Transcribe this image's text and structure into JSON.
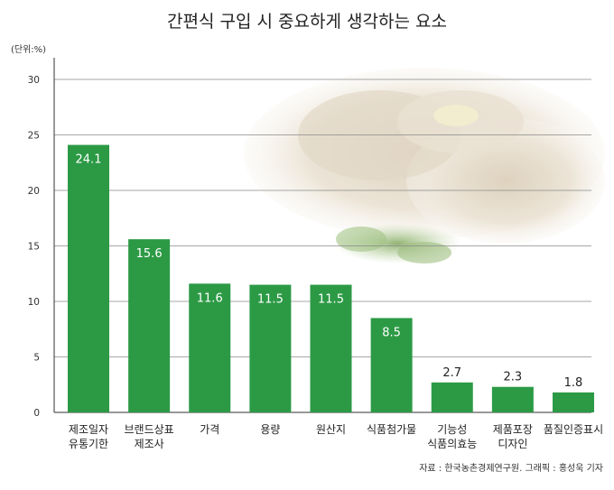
{
  "chart_data": {
    "type": "bar",
    "title": "간편식 구입 시 중요하게 생각하는 요소",
    "unit_label": "(단위:%)",
    "categories": [
      [
        "제조일자",
        "유통기한"
      ],
      [
        "브랜드상표",
        "제조사"
      ],
      [
        "가격"
      ],
      [
        "용량"
      ],
      [
        "원산지"
      ],
      [
        "식품첨가물"
      ],
      [
        "기능성",
        "식품의효능"
      ],
      [
        "제품포장",
        "디자인"
      ],
      [
        "품질인증표시"
      ]
    ],
    "values": [
      24.1,
      15.6,
      11.6,
      11.5,
      11.5,
      8.5,
      2.7,
      2.3,
      1.8
    ],
    "value_labels": [
      "24.1",
      "15.6",
      "11.6",
      "11.5",
      "11.5",
      "8.5",
      "2.7",
      "2.3",
      "1.8"
    ],
    "ylim": [
      0,
      30
    ],
    "yticks": [
      0,
      5,
      10,
      15,
      20,
      25,
      30
    ],
    "grid": true,
    "legend": "none",
    "source": "자료 : 한국농촌경제연구원. 그래픽 : 홍성욱 기자",
    "colors": {
      "bar": "#2c9a45",
      "grid": "#8a8a8a",
      "axis": "#333333"
    }
  }
}
